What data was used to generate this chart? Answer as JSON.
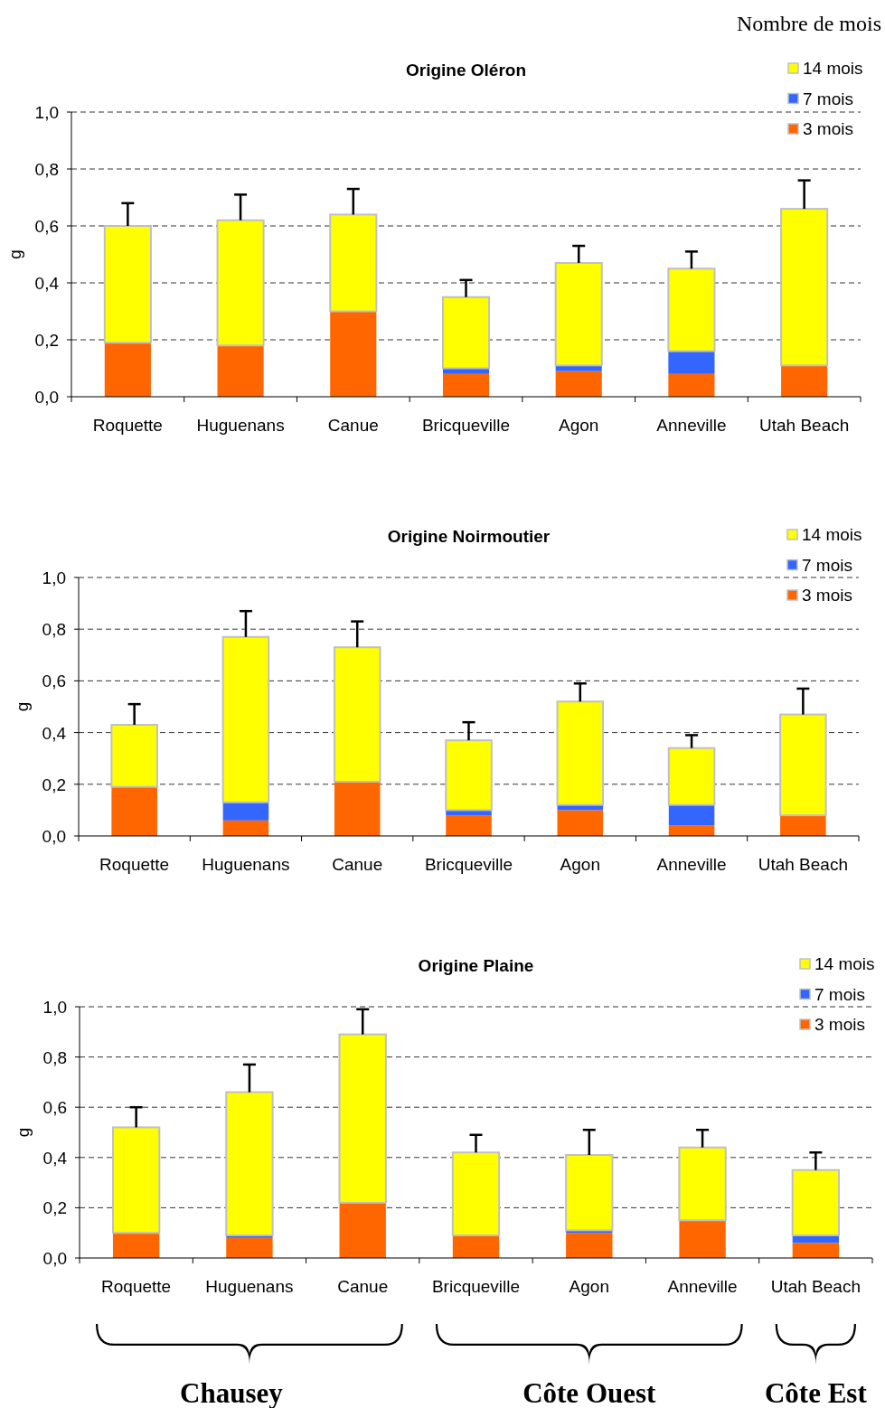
{
  "chart_data": [
    {
      "type": "bar",
      "title": "Origine Oléron",
      "ylabel": "g",
      "categories": [
        "Roquette",
        "Huguenans",
        "Canue",
        "Bricqueville",
        "Agon",
        "Anneville",
        "Utah Beach"
      ],
      "stacked": true,
      "ylim": [
        0,
        1
      ],
      "yticks": [
        {
          "value": 0,
          "label": "0,0"
        },
        {
          "value": 0.2,
          "label": "0,2"
        },
        {
          "value": 0.4,
          "label": "0,4"
        },
        {
          "value": 0.6,
          "label": "0,6"
        },
        {
          "value": 0.8,
          "label": "0,8"
        },
        {
          "value": 1,
          "label": "1,0"
        }
      ],
      "grid": "y",
      "legend": "top right",
      "annotations": [
        "Nombre de mois"
      ],
      "series": [
        {
          "name": "3 mois",
          "color": "#ff6600",
          "values": [
            0.19,
            0.18,
            0.3,
            0.08,
            0.09,
            0.08,
            0.11
          ]
        },
        {
          "name": "7 mois",
          "color": "#3366ff",
          "values": [
            0,
            0,
            0,
            0.02,
            0.02,
            0.08,
            0
          ]
        },
        {
          "name": "14 mois",
          "color": "#ffff00",
          "values": [
            0.41,
            0.44,
            0.34,
            0.25,
            0.36,
            0.29,
            0.55
          ],
          "errors": [
            [
              0.6,
              0.68
            ],
            [
              0.62,
              0.71
            ],
            [
              0.64,
              0.73
            ],
            [
              0.35,
              0.41
            ],
            [
              0.47,
              0.53
            ],
            [
              0.45,
              0.51
            ],
            [
              0.66,
              0.76
            ]
          ]
        }
      ]
    },
    {
      "type": "bar",
      "title": "Origine Noirmoutier",
      "ylabel": "g",
      "categories": [
        "Roquette",
        "Huguenans",
        "Canue",
        "Bricqueville",
        "Agon",
        "Anneville",
        "Utah Beach"
      ],
      "stacked": true,
      "ylim": [
        0,
        1
      ],
      "yticks": [
        {
          "value": 0,
          "label": "0,0"
        },
        {
          "value": 0.2,
          "label": "0,2"
        },
        {
          "value": 0.4,
          "label": "0,4"
        },
        {
          "value": 0.6,
          "label": "0,6"
        },
        {
          "value": 0.8,
          "label": "0,8"
        },
        {
          "value": 1,
          "label": "1,0"
        }
      ],
      "grid": "y",
      "legend": "top right",
      "series": [
        {
          "name": "3 mois",
          "color": "#ff6600",
          "values": [
            0.19,
            0.06,
            0.21,
            0.08,
            0.1,
            0.04,
            0.08
          ]
        },
        {
          "name": "7 mois",
          "color": "#3366ff",
          "values": [
            0,
            0.07,
            0,
            0.02,
            0.02,
            0.08,
            0
          ]
        },
        {
          "name": "14 mois",
          "color": "#ffff00",
          "values": [
            0.24,
            0.64,
            0.52,
            0.27,
            0.4,
            0.22,
            0.39
          ],
          "errors": [
            [
              0.43,
              0.51
            ],
            [
              0.77,
              0.87
            ],
            [
              0.73,
              0.83
            ],
            [
              0.37,
              0.44
            ],
            [
              0.52,
              0.59
            ],
            [
              0.34,
              0.39
            ],
            [
              0.47,
              0.57
            ]
          ]
        }
      ]
    },
    {
      "type": "bar",
      "title": "Origine Plaine",
      "ylabel": "g",
      "categories": [
        "Roquette",
        "Huguenans",
        "Canue",
        "Bricqueville",
        "Agon",
        "Anneville",
        "Utah Beach"
      ],
      "stacked": true,
      "ylim": [
        0,
        1
      ],
      "yticks": [
        {
          "value": 0,
          "label": "0,0"
        },
        {
          "value": 0.2,
          "label": "0,2"
        },
        {
          "value": 0.4,
          "label": "0,4"
        },
        {
          "value": 0.6,
          "label": "0,6"
        },
        {
          "value": 0.8,
          "label": "0,8"
        },
        {
          "value": 1,
          "label": "1,0"
        }
      ],
      "grid": "y",
      "legend": "top right",
      "annotations": [
        "Chausey",
        "Côte Ouest",
        "Côte Est"
      ],
      "series": [
        {
          "name": "3 mois",
          "color": "#ff6600",
          "values": [
            0.1,
            0.08,
            0.22,
            0.09,
            0.1,
            0.15,
            0.06
          ]
        },
        {
          "name": "7 mois",
          "color": "#3366ff",
          "values": [
            0,
            0.01,
            0,
            0,
            0.01,
            0,
            0.03
          ]
        },
        {
          "name": "14 mois",
          "color": "#ffff00",
          "values": [
            0.42,
            0.57,
            0.67,
            0.33,
            0.3,
            0.29,
            0.26
          ],
          "errors": [
            [
              0.52,
              0.6
            ],
            [
              0.66,
              0.77
            ],
            [
              0.89,
              0.99
            ],
            [
              0.42,
              0.49
            ],
            [
              0.41,
              0.51
            ],
            [
              0.44,
              0.51
            ],
            [
              0.35,
              0.42
            ]
          ]
        }
      ]
    }
  ]
}
